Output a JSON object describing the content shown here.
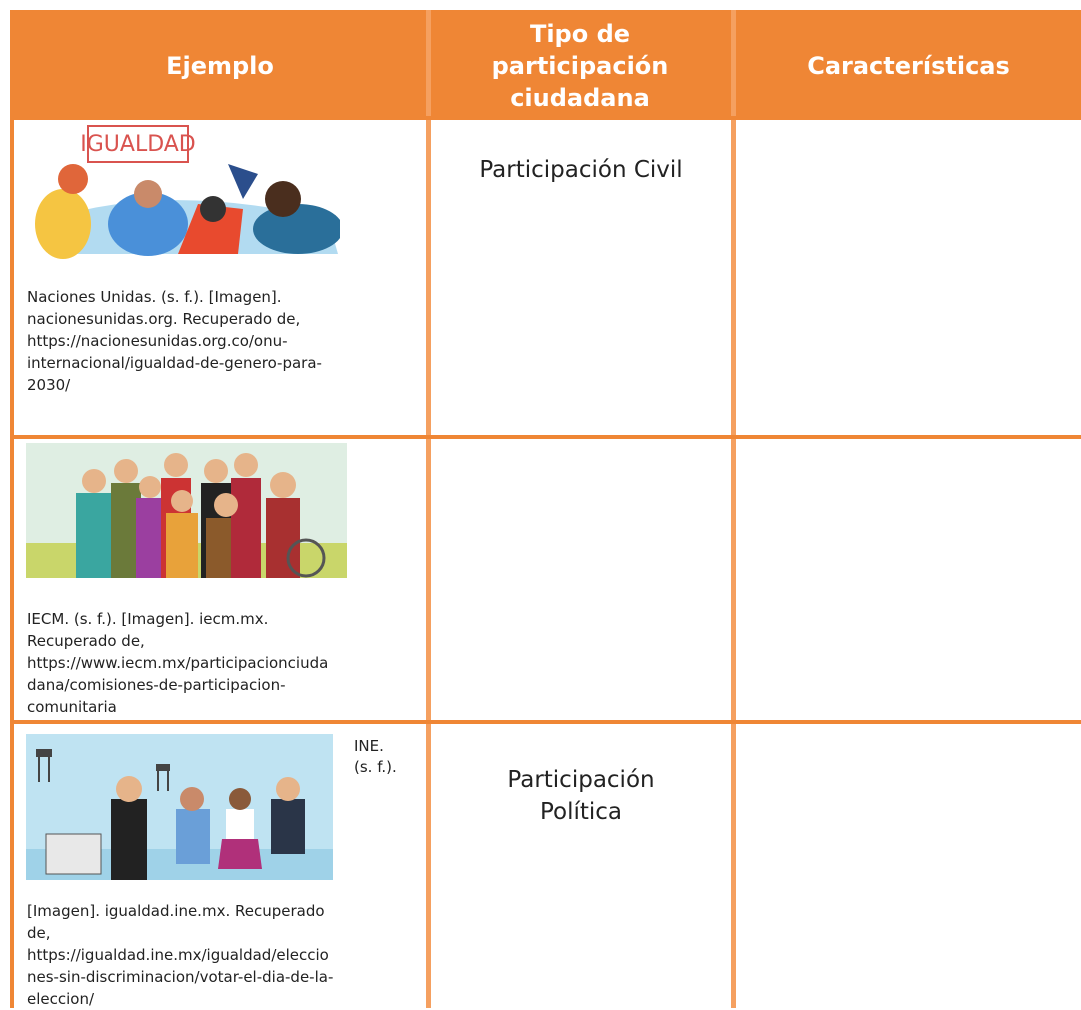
{
  "header": {
    "columns": [
      "Ejemplo",
      "Tipo de participación ciudadana",
      "Características"
    ]
  },
  "table": {
    "rows": [
      {
        "image_text": "IGUALDAD",
        "citation_lines": [
          "Naciones Unidas. (s. f.). [Imagen].",
          "nacionesunidas.org. Recuperado de,",
          "https://nacionesunidas.org.co/onu-",
          "internacional/igualdad-de-genero-para-",
          "2030/"
        ],
        "tipo": "Participación Civil"
      },
      {
        "citation_lines": [
          "IECM. (s. f.). [Imagen]. iecm.mx.",
          "Recuperado de,",
          "https://www.iecm.mx/participacionciuda",
          "dana/comisiones-de-participacion-",
          "comunitaria"
        ]
      },
      {
        "citation_side": [
          "INE.",
          "(s. f.)."
        ],
        "citation_lines": [
          "[Imagen]. igualdad.ine.mx.  Recuperado",
          "de,",
          "https://igualdad.ine.mx/igualdad/eleccio",
          "nes-sin-discriminacion/votar-el-dia-de-la-",
          "eleccion/"
        ],
        "tipo_lines": [
          "Participación",
          "Política"
        ]
      }
    ]
  }
}
